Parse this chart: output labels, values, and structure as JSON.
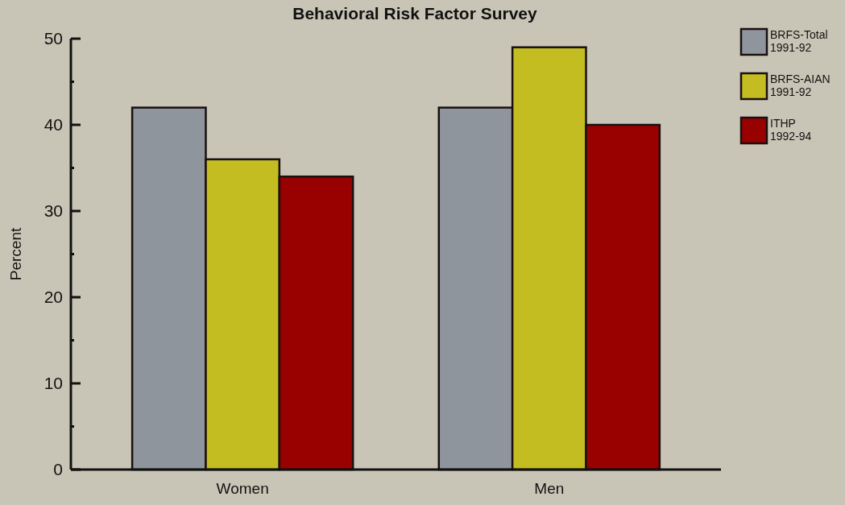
{
  "chart_data": {
    "type": "bar",
    "title": "Behavioral Risk Factor Survey",
    "ylabel": "Percent",
    "categories": [
      "Women",
      "Men"
    ],
    "series": [
      {
        "name": "BRFS-Total 1991-92",
        "color": "#8f959c",
        "values": [
          42,
          42
        ]
      },
      {
        "name": "BRFS-AIAN 1991-92",
        "color": "#c3bd22",
        "values": [
          36,
          49
        ]
      },
      {
        "name": "ITHP 1992-94",
        "color": "#990000",
        "values": [
          34,
          40
        ]
      }
    ],
    "ylim": [
      0,
      50
    ],
    "yticks": [
      0,
      {
        "value": 5,
        "label": null
      },
      10,
      {
        "value": 15,
        "label": null
      },
      20,
      {
        "value": 25,
        "label": null
      },
      30,
      {
        "value": 35,
        "label": null
      },
      40,
      {
        "value": 45,
        "label": null
      },
      50
    ],
    "grid": false,
    "legend": "top right"
  }
}
